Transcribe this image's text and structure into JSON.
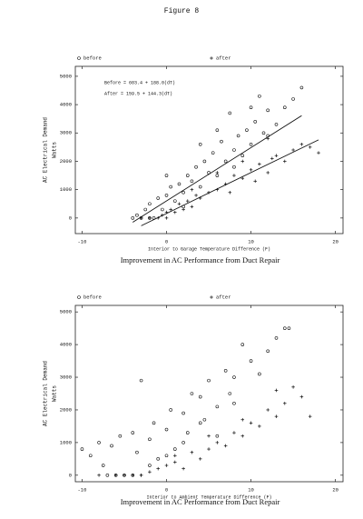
{
  "figure": "Figure 8",
  "chart_data": [
    {
      "type": "scatter",
      "caption": "Improvement in AC Performance from Duct Repair",
      "xlabel": "Interior to Garage Temperature Difference (F)",
      "ylabel": [
        "AC Electrical Demand",
        "Watts"
      ],
      "xlim": [
        -10.8,
        20.9
      ],
      "ylim": [
        -550,
        5350
      ],
      "xticks": [
        -10,
        0,
        10,
        20
      ],
      "yticks": [
        0,
        1000,
        2000,
        3000,
        4000,
        5000
      ],
      "legend": "top",
      "series": [
        {
          "name": "before",
          "color": "#111111",
          "marker": "circle",
          "x": [
            -4,
            -3.5,
            -3,
            -2.5,
            -2,
            -1.5,
            -1,
            -0.5,
            0,
            0.5,
            1,
            1.5,
            2,
            2.5,
            3,
            3.5,
            4,
            4.5,
            5,
            5.5,
            6,
            6.5,
            7,
            7.5,
            8,
            8.5,
            9,
            9.5,
            10,
            10.5,
            11,
            11.5,
            12,
            13,
            14,
            15,
            16,
            -2,
            0,
            2,
            4,
            6,
            8,
            10,
            12
          ],
          "values": [
            0,
            100,
            0,
            300,
            500,
            0,
            700,
            300,
            800,
            1100,
            600,
            1200,
            900,
            1500,
            1300,
            1800,
            1100,
            2000,
            1600,
            2300,
            1500,
            2700,
            2000,
            3700,
            2400,
            2900,
            2200,
            3100,
            2600,
            3400,
            4300,
            3000,
            3800,
            3300,
            3900,
            4200,
            4600,
            0,
            1500,
            400,
            2600,
            3100,
            1800,
            3900,
            2900
          ]
        },
        {
          "name": "after",
          "color": "#111111",
          "marker": "plus",
          "x": [
            -3,
            -2,
            -1,
            -0.5,
            0,
            0.5,
            1,
            1.5,
            2,
            2.5,
            3,
            3.5,
            4,
            5,
            6,
            7,
            7.5,
            8,
            9,
            10,
            10.5,
            11,
            12,
            12.5,
            13,
            14,
            15,
            16,
            17,
            18,
            0,
            3,
            6,
            9,
            12
          ],
          "values": [
            0,
            0,
            0,
            100,
            0,
            300,
            200,
            500,
            300,
            600,
            400,
            800,
            700,
            900,
            1000,
            1200,
            900,
            1500,
            1400,
            1700,
            1300,
            1900,
            1600,
            2100,
            2200,
            2000,
            2400,
            2600,
            2500,
            2300,
            200,
            1000,
            1600,
            2000,
            2800
          ]
        }
      ],
      "fits": [
        {
          "label": "Before = 603.4 + 188.0(dT)",
          "intercept": 603.4,
          "slope": 188.0
        },
        {
          "label": "After = 159.5 + 144.3(dT)",
          "intercept": 159.5,
          "slope": 144.3
        }
      ]
    },
    {
      "type": "scatter",
      "caption": "Improvement in AC Performance from Duct Repair",
      "xlabel": "Interior to Ambient Temperature Difference (F)",
      "ylabel": [
        "AC Electrical Demand",
        "Watts"
      ],
      "xlim": [
        -10.8,
        20.9
      ],
      "ylim": [
        -200,
        5200
      ],
      "xticks": [
        -10,
        0,
        10,
        20
      ],
      "yticks": [
        0,
        1000,
        2000,
        3000,
        4000,
        5000
      ],
      "legend": "top",
      "series": [
        {
          "name": "before",
          "color": "#111111",
          "marker": "circle",
          "x": [
            -10,
            -9,
            -8,
            -7.5,
            -7,
            -6.5,
            -6,
            -5.5,
            -5,
            -4,
            -3.5,
            -3,
            -2,
            -1.5,
            -1,
            0,
            0.5,
            1,
            2,
            2.5,
            3,
            4,
            4.5,
            5,
            6,
            7,
            7.5,
            8,
            9,
            10,
            11,
            12,
            13,
            14,
            14.5,
            -4,
            -2,
            0,
            2,
            4,
            6,
            8
          ],
          "values": [
            800,
            600,
            1000,
            300,
            0,
            900,
            0,
            1200,
            0,
            0,
            700,
            2900,
            1100,
            1600,
            500,
            1400,
            2000,
            800,
            1900,
            1300,
            2500,
            2400,
            1700,
            2900,
            2100,
            3200,
            2500,
            3000,
            4000,
            3500,
            3100,
            3800,
            4200,
            4500,
            4500,
            1300,
            300,
            600,
            1000,
            1600,
            1200,
            2200
          ]
        },
        {
          "name": "after",
          "color": "#111111",
          "marker": "plus",
          "x": [
            -8,
            -6,
            -5,
            -4,
            -3,
            -2,
            -1,
            0,
            1,
            2,
            3,
            4,
            5,
            6,
            7,
            8,
            9,
            10,
            11,
            12,
            13,
            14,
            15,
            16,
            17,
            -3,
            1,
            5,
            9,
            13
          ],
          "values": [
            0,
            0,
            0,
            0,
            0,
            100,
            200,
            300,
            400,
            200,
            700,
            500,
            800,
            1000,
            900,
            1300,
            1200,
            1600,
            1500,
            2000,
            1800,
            2200,
            2700,
            2400,
            1800,
            0,
            600,
            1200,
            1700,
            2600
          ]
        }
      ]
    }
  ]
}
